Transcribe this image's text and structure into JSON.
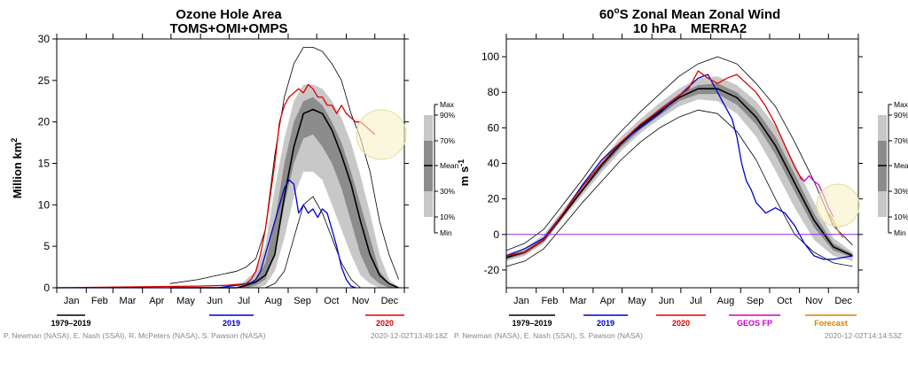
{
  "chart_data": [
    {
      "type": "line",
      "title": "Ozone Hole Area",
      "subtitle": "TOMS+OMI+OMPS",
      "ylabel": "Million km",
      "ylabel_sup": "2",
      "ylim": [
        0,
        30
      ],
      "yticks": [
        0,
        5,
        10,
        15,
        20,
        25,
        30
      ],
      "months": [
        "Jan",
        "Feb",
        "Mar",
        "Apr",
        "May",
        "Jun",
        "Jul",
        "Aug",
        "Sep",
        "Oct",
        "Nov",
        "Dec"
      ],
      "grid": false,
      "bands": {
        "doy": [
          120,
          150,
          170,
          190,
          200,
          210,
          220,
          230,
          240,
          250,
          260,
          270,
          280,
          290,
          300,
          310,
          320,
          330,
          340,
          350,
          360
        ],
        "min": [
          0,
          0,
          0,
          0,
          0,
          0,
          0,
          0.5,
          2,
          6,
          10,
          11,
          9,
          6,
          3,
          1,
          0,
          0,
          0,
          0,
          0
        ],
        "p10": [
          0,
          0,
          0,
          0,
          0,
          0,
          0.3,
          2,
          6,
          11,
          14,
          14,
          13,
          10,
          7,
          4,
          1.5,
          0.5,
          0,
          0,
          0
        ],
        "p30": [
          0,
          0,
          0,
          0,
          0,
          0.3,
          1,
          4,
          10,
          15,
          18,
          18.5,
          17,
          15,
          12,
          8,
          4,
          1.5,
          0.5,
          0,
          0
        ],
        "p70": [
          0,
          0,
          0,
          0,
          0.5,
          1,
          3,
          8,
          15,
          20,
          22.5,
          23,
          22,
          20,
          17.5,
          14,
          10,
          6,
          2,
          0.5,
          0
        ],
        "p90": [
          0,
          0,
          0,
          0,
          1,
          2,
          5,
          12,
          18,
          22.5,
          24.5,
          24.5,
          24,
          22.5,
          20.5,
          17.5,
          13.5,
          9,
          4,
          1,
          0
        ],
        "max": [
          0.5,
          1,
          1.5,
          2,
          2.5,
          3.5,
          7,
          16,
          23,
          27,
          29,
          29,
          28.5,
          27,
          25,
          21,
          18,
          14,
          8,
          4,
          1
        ],
        "mean": [
          0,
          0,
          0,
          0,
          0.3,
          0.7,
          1.5,
          4,
          11,
          17,
          21,
          21.5,
          21,
          19,
          16,
          12.5,
          8,
          4,
          1.5,
          0.5,
          0
        ]
      },
      "series": [
        {
          "name": "2019",
          "color": "#0000cc",
          "x": [
            1,
            150,
            170,
            190,
            200,
            205,
            210,
            215,
            220,
            225,
            230,
            235,
            240,
            245,
            250,
            255,
            260,
            265,
            270,
            275,
            280,
            285,
            290,
            295,
            300,
            305,
            310,
            315
          ],
          "y": [
            0,
            0,
            0,
            0.3,
            0.5,
            0.6,
            1,
            2,
            4,
            6,
            8,
            10,
            12,
            13,
            12.5,
            9,
            10,
            9,
            9.5,
            8.5,
            9.5,
            9,
            7,
            5,
            2.5,
            1,
            0.2,
            0
          ]
        },
        {
          "name": "2020",
          "color": "#dd0000",
          "x": [
            1,
            150,
            180,
            200,
            205,
            210,
            215,
            220,
            225,
            230,
            235,
            240,
            245,
            250,
            255,
            260,
            265,
            270,
            275,
            280,
            285,
            290,
            295,
            300,
            305,
            310,
            315,
            320,
            325,
            330,
            335
          ],
          "y": [
            0,
            0.2,
            0.3,
            0.5,
            1,
            2,
            4,
            7,
            11,
            15,
            20,
            22,
            23,
            23.5,
            24,
            23.5,
            24.5,
            24,
            23,
            23,
            22,
            22,
            21,
            22,
            21,
            20.5,
            20,
            20,
            19.5,
            19,
            18.5
          ]
        }
      ],
      "legend": [
        "1979–2019",
        "2019",
        "2020"
      ],
      "stat_labels": [
        "Max",
        "90%",
        "70%",
        "Mean",
        "30%",
        "10%",
        "Min"
      ],
      "credit": "P. Newman (NASA), E. Nash (SSAI), R. McPeters (NASA), S. Pawson (NASA)",
      "timestamp": "2020-12-02T13:49:18Z"
    },
    {
      "type": "line",
      "title": "60°S Zonal Mean Zonal Wind",
      "title_deg_prefix": "60",
      "title_deg_sup": "o",
      "title_rest": "S Zonal Mean Zonal Wind",
      "subtitle": "10 hPa    MERRA2",
      "ylabel": "m s",
      "ylabel_sup": "-1",
      "ylim": [
        -30,
        110
      ],
      "yticks": [
        -20,
        0,
        20,
        40,
        60,
        80,
        100
      ],
      "months": [
        "Jan",
        "Feb",
        "Mar",
        "Apr",
        "May",
        "Jun",
        "Jul",
        "Aug",
        "Sep",
        "Oct",
        "Nov",
        "Dec"
      ],
      "grid": false,
      "bands": {
        "doy": [
          1,
          20,
          40,
          60,
          80,
          100,
          120,
          140,
          160,
          180,
          200,
          220,
          240,
          260,
          280,
          300,
          320,
          340,
          360
        ],
        "min": [
          -18,
          -15,
          -8,
          5,
          18,
          30,
          42,
          52,
          60,
          66,
          70,
          68,
          58,
          42,
          20,
          0,
          -10,
          -16,
          -18
        ],
        "p10": [
          -15,
          -12,
          -5,
          9,
          22,
          35,
          47,
          57,
          65,
          72,
          76,
          75,
          68,
          55,
          36,
          15,
          -3,
          -12,
          -15
        ],
        "p30": [
          -14,
          -11,
          -4,
          10,
          24,
          37,
          49,
          59,
          67,
          75,
          79,
          79,
          73,
          62,
          45,
          24,
          4,
          -9,
          -13
        ],
        "p70": [
          -12,
          -9,
          -2,
          12,
          26,
          40,
          52,
          62,
          71,
          79,
          84,
          85,
          80,
          70,
          55,
          34,
          12,
          -5,
          -11
        ],
        "p90": [
          -11,
          -8,
          0,
          14,
          28,
          42,
          55,
          65,
          74,
          82,
          88,
          89,
          84,
          75,
          61,
          40,
          18,
          -2,
          -10
        ],
        "max": [
          -9,
          -5,
          3,
          17,
          31,
          46,
          58,
          69,
          79,
          89,
          96,
          100,
          96,
          85,
          72,
          52,
          30,
          5,
          -6
        ],
        "mean": [
          -13,
          -10,
          -3,
          11,
          25,
          39,
          51,
          61,
          69,
          77,
          82,
          82,
          77,
          66,
          50,
          29,
          8,
          -7,
          -12
        ]
      },
      "series": [
        {
          "name": "2019",
          "color": "#0000cc",
          "x": [
            1,
            20,
            40,
            60,
            80,
            100,
            120,
            140,
            160,
            180,
            200,
            210,
            215,
            220,
            225,
            230,
            235,
            240,
            245,
            250,
            255,
            260,
            270,
            280,
            290,
            300,
            310,
            320,
            330,
            340,
            350,
            360
          ],
          "y": [
            -12,
            -8,
            -2,
            12,
            28,
            42,
            52,
            60,
            68,
            78,
            88,
            90,
            85,
            80,
            75,
            70,
            65,
            55,
            40,
            30,
            25,
            18,
            12,
            15,
            12,
            5,
            -5,
            -12,
            -14,
            -14,
            -13,
            -12
          ]
        },
        {
          "name": "2020",
          "color": "#dd0000",
          "x": [
            1,
            20,
            40,
            60,
            80,
            100,
            120,
            140,
            160,
            180,
            190,
            200,
            210,
            220,
            230,
            240,
            250,
            260,
            270,
            280,
            290,
            300,
            305,
            310
          ],
          "y": [
            -12,
            -10,
            -3,
            12,
            27,
            40,
            52,
            62,
            70,
            78,
            82,
            92,
            88,
            85,
            88,
            90,
            85,
            80,
            72,
            62,
            50,
            38,
            33,
            30
          ]
        },
        {
          "name": "GEOS FP",
          "color": "#cc00cc",
          "x": [
            305,
            310,
            315,
            320,
            325,
            330,
            335,
            340
          ],
          "y": [
            32,
            30,
            33,
            30,
            28,
            22,
            15,
            10
          ]
        },
        {
          "name": "Forecast",
          "color": "#e08000",
          "x": [
            335,
            340,
            345,
            350
          ],
          "y": [
            12,
            8,
            2,
            -2
          ]
        }
      ],
      "legend": [
        "1979–2019",
        "2019",
        "2020",
        "GEOS FP",
        "Forecast"
      ],
      "stat_labels": [
        "Max",
        "90%",
        "70%",
        "Mean",
        "30%",
        "10%",
        "Min"
      ],
      "credit": "P. Newman (NASA), E. Nash (SSAI), S. Pawson (NASA)",
      "timestamp": "2020-12-02T14:14:53Z"
    }
  ]
}
